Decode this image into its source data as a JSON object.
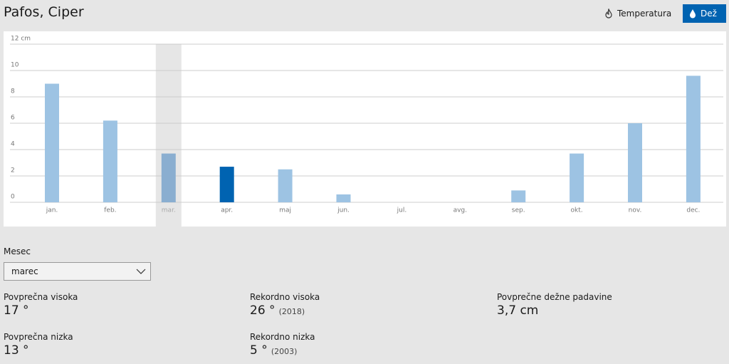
{
  "header": {
    "title": "Pafos, Ciper",
    "buttons": [
      "Temperatura",
      "Dež"
    ]
  },
  "chart_data": {
    "type": "bar",
    "categories": [
      "jan.",
      "feb.",
      "mar.",
      "apr.",
      "maj",
      "jun.",
      "jul.",
      "avg.",
      "sep.",
      "okt.",
      "nov.",
      "dec."
    ],
    "values": [
      9.0,
      6.2,
      3.7,
      2.7,
      2.5,
      0.6,
      0,
      0,
      0.9,
      3.7,
      6.0,
      9.6
    ],
    "colors": [
      "#9dc3e3",
      "#9dc3e3",
      "#8aaed0",
      "#0063b1",
      "#9dc3e3",
      "#9dc3e3",
      "#9dc3e3",
      "#9dc3e3",
      "#9dc3e3",
      "#9dc3e3",
      "#9dc3e3",
      "#9dc3e3"
    ],
    "highlighted": 2,
    "ylim": [
      0,
      12
    ],
    "yticks": [
      0,
      2,
      4,
      6,
      8,
      10,
      {
        "value": 12,
        "label": "12 cm"
      }
    ],
    "grid": true
  },
  "month_selector": {
    "label": "Mesec",
    "value": "marec"
  },
  "stats": [
    {
      "label": "Povprečna visoka",
      "value": "17 °"
    },
    {
      "label": "Rekordno visoka",
      "value": "26 °",
      "note": "(2018)"
    },
    {
      "label": "Povprečne dežne padavine",
      "value": "3,7 cm"
    },
    {
      "label": "Povprečna nizka",
      "value": "13 °"
    },
    {
      "label": "Rekordno nizka",
      "value": "5 °",
      "note": "(2003)"
    }
  ]
}
